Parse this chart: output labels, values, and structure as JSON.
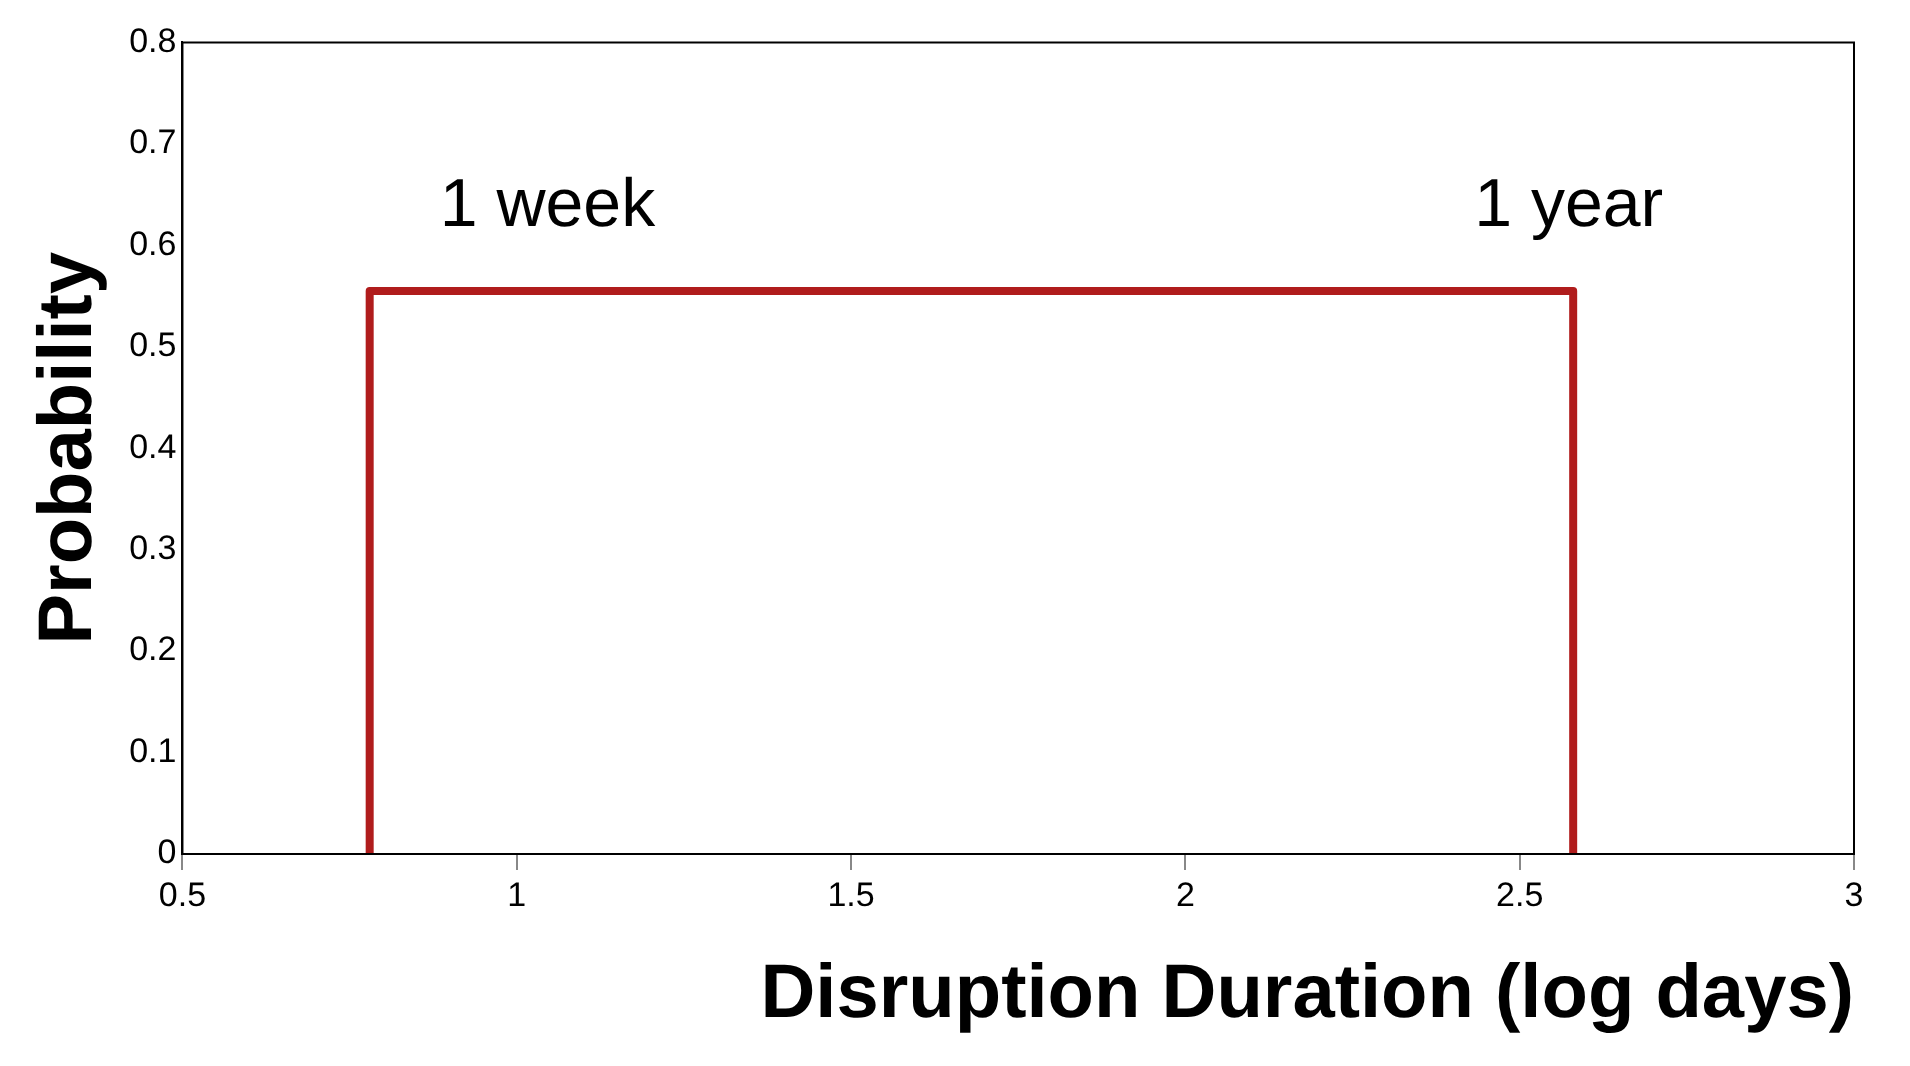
{
  "chart_data": {
    "type": "histogram",
    "xlabel": "Disruption Duration (log days)",
    "ylabel": "Probability",
    "bins": [
      0.78,
      2.58
    ],
    "values": [
      0.555
    ],
    "color": "#b01c1c",
    "annotations": [
      "1 week",
      "1 year"
    ],
    "xlim": [
      0.5,
      3
    ],
    "xticks": [
      0.5,
      1,
      1.5,
      2,
      2.5,
      3
    ],
    "ylim": [
      0,
      0.8
    ],
    "yticks": [
      0,
      0.1,
      0.2,
      0.3,
      0.4,
      0.5,
      0.6,
      0.7,
      0.8
    ],
    "grid": false,
    "legend": false
  }
}
